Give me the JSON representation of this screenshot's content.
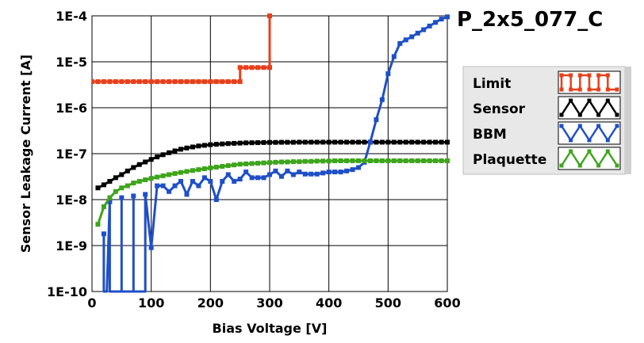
{
  "chart_data": {
    "type": "line",
    "title": "P_2x5_077_C",
    "xlabel": "Bias Voltage [V]",
    "ylabel": "Sensor Leakage Current [A]",
    "xlim": [
      0,
      600
    ],
    "ylim": [
      1e-10,
      0.0001
    ],
    "yscale": "log",
    "grid": true,
    "legend_position": "right",
    "x_ticks": [
      "0",
      "100",
      "200",
      "300",
      "400",
      "500",
      "600"
    ],
    "y_ticks": [
      "1E-10",
      "1E-9",
      "1E-8",
      "1E-7",
      "1E-6",
      "1E-5",
      "1E-4"
    ],
    "series": [
      {
        "name": "Limit",
        "color": "#e8401c",
        "shape": "limit",
        "points": [
          [
            0,
            3.7e-06
          ],
          [
            10,
            3.7e-06
          ],
          [
            20,
            3.7e-06
          ],
          [
            30,
            3.7e-06
          ],
          [
            40,
            3.7e-06
          ],
          [
            50,
            3.7e-06
          ],
          [
            60,
            3.7e-06
          ],
          [
            70,
            3.7e-06
          ],
          [
            80,
            3.7e-06
          ],
          [
            90,
            3.7e-06
          ],
          [
            100,
            3.7e-06
          ],
          [
            110,
            3.7e-06
          ],
          [
            120,
            3.7e-06
          ],
          [
            130,
            3.7e-06
          ],
          [
            140,
            3.7e-06
          ],
          [
            150,
            3.7e-06
          ],
          [
            160,
            3.7e-06
          ],
          [
            170,
            3.7e-06
          ],
          [
            180,
            3.7e-06
          ],
          [
            190,
            3.7e-06
          ],
          [
            200,
            3.7e-06
          ],
          [
            210,
            3.7e-06
          ],
          [
            220,
            3.7e-06
          ],
          [
            230,
            3.7e-06
          ],
          [
            240,
            3.7e-06
          ],
          [
            250,
            3.7e-06
          ],
          [
            250,
            7.5e-06
          ],
          [
            260,
            7.5e-06
          ],
          [
            270,
            7.5e-06
          ],
          [
            280,
            7.5e-06
          ],
          [
            290,
            7.5e-06
          ],
          [
            300,
            7.5e-06
          ],
          [
            300,
            0.0001
          ]
        ]
      },
      {
        "name": "Sensor",
        "color": "#000000",
        "shape": "sensor",
        "points": [
          [
            10,
            1.8e-08
          ],
          [
            20,
            2.1e-08
          ],
          [
            30,
            2.5e-08
          ],
          [
            40,
            3e-08
          ],
          [
            50,
            3.5e-08
          ],
          [
            60,
            4.2e-08
          ],
          [
            70,
            5e-08
          ],
          [
            80,
            5.8e-08
          ],
          [
            90,
            6.6e-08
          ],
          [
            100,
            7.5e-08
          ],
          [
            110,
            8.5e-08
          ],
          [
            120,
            9.5e-08
          ],
          [
            130,
            1.05e-07
          ],
          [
            140,
            1.15e-07
          ],
          [
            150,
            1.25e-07
          ],
          [
            160,
            1.33e-07
          ],
          [
            170,
            1.4e-07
          ],
          [
            180,
            1.47e-07
          ],
          [
            190,
            1.52e-07
          ],
          [
            200,
            1.57e-07
          ],
          [
            210,
            1.6e-07
          ],
          [
            220,
            1.63e-07
          ],
          [
            230,
            1.66e-07
          ],
          [
            240,
            1.68e-07
          ],
          [
            250,
            1.7e-07
          ],
          [
            260,
            1.72e-07
          ],
          [
            270,
            1.73e-07
          ],
          [
            280,
            1.74e-07
          ],
          [
            290,
            1.75e-07
          ],
          [
            300,
            1.76e-07
          ],
          [
            310,
            1.76e-07
          ],
          [
            320,
            1.77e-07
          ],
          [
            330,
            1.77e-07
          ],
          [
            340,
            1.77e-07
          ],
          [
            350,
            1.78e-07
          ],
          [
            360,
            1.78e-07
          ],
          [
            370,
            1.78e-07
          ],
          [
            380,
            1.78e-07
          ],
          [
            390,
            1.78e-07
          ],
          [
            400,
            1.78e-07
          ],
          [
            410,
            1.78e-07
          ],
          [
            420,
            1.78e-07
          ],
          [
            430,
            1.78e-07
          ],
          [
            440,
            1.78e-07
          ],
          [
            450,
            1.78e-07
          ],
          [
            460,
            1.78e-07
          ],
          [
            470,
            1.78e-07
          ],
          [
            480,
            1.78e-07
          ],
          [
            490,
            1.78e-07
          ],
          [
            500,
            1.78e-07
          ],
          [
            510,
            1.78e-07
          ],
          [
            520,
            1.78e-07
          ],
          [
            530,
            1.78e-07
          ],
          [
            540,
            1.78e-07
          ],
          [
            550,
            1.78e-07
          ],
          [
            560,
            1.78e-07
          ],
          [
            570,
            1.78e-07
          ],
          [
            580,
            1.78e-07
          ],
          [
            590,
            1.78e-07
          ],
          [
            600,
            1.78e-07
          ]
        ]
      },
      {
        "name": "BBM",
        "color": "#1f4fc8",
        "shape": "bbm",
        "points": [
          [
            20,
            1.8e-09
          ],
          [
            20,
            1e-10
          ],
          [
            25,
            1e-10
          ],
          [
            30,
            9e-09
          ],
          [
            30,
            1e-10
          ],
          [
            50,
            1e-10
          ],
          [
            50,
            1.1e-08
          ],
          [
            50,
            1e-10
          ],
          [
            70,
            1e-10
          ],
          [
            70,
            1.2e-08
          ],
          [
            70,
            1e-10
          ],
          [
            90,
            1e-10
          ],
          [
            90,
            1.3e-08
          ],
          [
            100,
            9e-10
          ],
          [
            110,
            2e-08
          ],
          [
            120,
            2e-08
          ],
          [
            130,
            1.5e-08
          ],
          [
            140,
            2e-08
          ],
          [
            150,
            2.5e-08
          ],
          [
            160,
            1.3e-08
          ],
          [
            170,
            2.5e-08
          ],
          [
            180,
            2e-08
          ],
          [
            190,
            3e-08
          ],
          [
            200,
            2.5e-08
          ],
          [
            210,
            1e-08
          ],
          [
            220,
            2.5e-08
          ],
          [
            230,
            3.5e-08
          ],
          [
            240,
            2.5e-08
          ],
          [
            250,
            2.8e-08
          ],
          [
            260,
            4e-08
          ],
          [
            270,
            3e-08
          ],
          [
            280,
            3e-08
          ],
          [
            290,
            3e-08
          ],
          [
            300,
            3.5e-08
          ],
          [
            310,
            4.2e-08
          ],
          [
            320,
            3.2e-08
          ],
          [
            330,
            4.2e-08
          ],
          [
            340,
            3.5e-08
          ],
          [
            350,
            4e-08
          ],
          [
            360,
            3.6e-08
          ],
          [
            370,
            3.6e-08
          ],
          [
            380,
            3.6e-08
          ],
          [
            390,
            3.8e-08
          ],
          [
            400,
            4e-08
          ],
          [
            410,
            4e-08
          ],
          [
            420,
            4e-08
          ],
          [
            430,
            4.2e-08
          ],
          [
            440,
            4.5e-08
          ],
          [
            450,
            5e-08
          ],
          [
            460,
            6.5e-08
          ],
          [
            470,
            1.8e-07
          ],
          [
            480,
            5.5e-07
          ],
          [
            490,
            1.5e-06
          ],
          [
            500,
            5.5e-06
          ],
          [
            510,
            1.3e-05
          ],
          [
            520,
            2.5e-05
          ],
          [
            530,
            3e-05
          ],
          [
            540,
            3.5e-05
          ],
          [
            550,
            4.2e-05
          ],
          [
            560,
            5e-05
          ],
          [
            570,
            6e-05
          ],
          [
            580,
            7.2e-05
          ],
          [
            590,
            8.5e-05
          ],
          [
            600,
            9.5e-05
          ]
        ]
      },
      {
        "name": "Plaquette",
        "color": "#3ea51c",
        "shape": "plaquette",
        "points": [
          [
            10,
            2.9e-09
          ],
          [
            20,
            7e-09
          ],
          [
            30,
            1.1e-08
          ],
          [
            40,
            1.5e-08
          ],
          [
            50,
            1.8e-08
          ],
          [
            60,
            2e-08
          ],
          [
            70,
            2.3e-08
          ],
          [
            80,
            2.5e-08
          ],
          [
            90,
            2.7e-08
          ],
          [
            100,
            2.9e-08
          ],
          [
            110,
            3.1e-08
          ],
          [
            120,
            3.3e-08
          ],
          [
            130,
            3.5e-08
          ],
          [
            140,
            3.7e-08
          ],
          [
            150,
            3.9e-08
          ],
          [
            160,
            4.1e-08
          ],
          [
            170,
            4.3e-08
          ],
          [
            180,
            4.5e-08
          ],
          [
            190,
            4.7e-08
          ],
          [
            200,
            4.9e-08
          ],
          [
            210,
            5.1e-08
          ],
          [
            220,
            5.3e-08
          ],
          [
            230,
            5.5e-08
          ],
          [
            240,
            5.7e-08
          ],
          [
            250,
            5.9e-08
          ],
          [
            260,
            6e-08
          ],
          [
            270,
            6.1e-08
          ],
          [
            280,
            6.2e-08
          ],
          [
            290,
            6.3e-08
          ],
          [
            300,
            6.4e-08
          ],
          [
            310,
            6.5e-08
          ],
          [
            320,
            6.6e-08
          ],
          [
            330,
            6.6e-08
          ],
          [
            340,
            6.7e-08
          ],
          [
            350,
            6.7e-08
          ],
          [
            360,
            6.8e-08
          ],
          [
            370,
            6.8e-08
          ],
          [
            380,
            6.9e-08
          ],
          [
            390,
            6.9e-08
          ],
          [
            400,
            6.9e-08
          ],
          [
            410,
            7e-08
          ],
          [
            420,
            7e-08
          ],
          [
            430,
            7e-08
          ],
          [
            440,
            7e-08
          ],
          [
            450,
            7e-08
          ],
          [
            460,
            7e-08
          ],
          [
            470,
            7e-08
          ],
          [
            480,
            7e-08
          ],
          [
            490,
            7e-08
          ],
          [
            500,
            7e-08
          ],
          [
            510,
            7e-08
          ],
          [
            520,
            7e-08
          ],
          [
            530,
            7e-08
          ],
          [
            540,
            7e-08
          ],
          [
            550,
            7e-08
          ],
          [
            560,
            7e-08
          ],
          [
            570,
            7e-08
          ],
          [
            580,
            7e-08
          ],
          [
            590,
            7e-08
          ],
          [
            600,
            7e-08
          ]
        ]
      }
    ]
  }
}
